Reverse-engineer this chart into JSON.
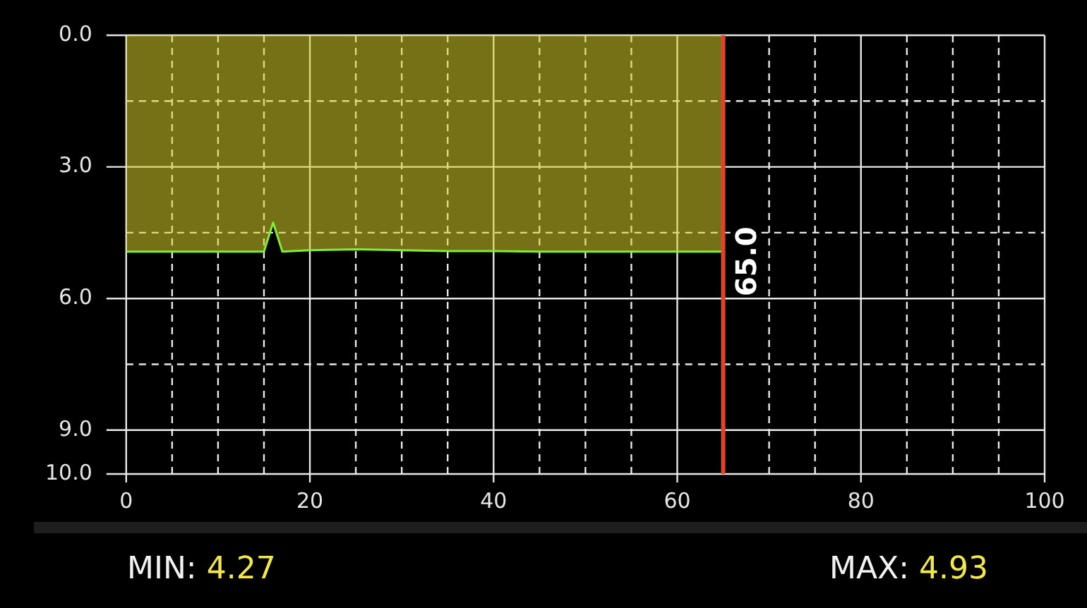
{
  "chart_data": {
    "type": "area",
    "x": [
      0,
      5,
      10,
      15,
      16,
      17,
      20,
      25,
      30,
      35,
      40,
      45,
      50,
      55,
      60,
      65
    ],
    "series": [
      {
        "color": "#7ef03a",
        "values": [
          4.93,
          4.93,
          4.93,
          4.93,
          4.27,
          4.93,
          4.9,
          4.88,
          4.9,
          4.92,
          4.92,
          4.93,
          4.93,
          4.93,
          4.93,
          4.93
        ]
      }
    ],
    "xlim": [
      0,
      100
    ],
    "xticks": [
      0,
      {
        "value": 5,
        "label": null
      },
      {
        "value": 10,
        "label": null
      },
      {
        "value": 15,
        "label": null
      },
      20,
      {
        "value": 25,
        "label": null
      },
      {
        "value": 30,
        "label": null
      },
      {
        "value": 35,
        "label": null
      },
      40,
      {
        "value": 45,
        "label": null
      },
      {
        "value": 50,
        "label": null
      },
      {
        "value": 55,
        "label": null
      },
      60,
      {
        "value": 65,
        "label": null
      },
      {
        "value": 70,
        "label": null
      },
      {
        "value": 75,
        "label": null
      },
      80,
      {
        "value": 85,
        "label": null
      },
      {
        "value": 90,
        "label": null
      },
      {
        "value": 95,
        "label": null
      },
      100
    ],
    "ylim": [
      10,
      0
    ],
    "yticks": [
      {
        "value": 0,
        "label": "0.0"
      },
      {
        "value": 1.5,
        "label": null
      },
      {
        "value": 3,
        "label": "3.0"
      },
      {
        "value": 4.5,
        "label": null
      },
      {
        "value": 6,
        "label": "6.0"
      },
      {
        "value": 7.5,
        "label": null
      },
      {
        "value": 9,
        "label": "9.0"
      },
      {
        "value": 10,
        "label": "10.0"
      }
    ],
    "grid": true,
    "legend": false,
    "marker": "none",
    "ref_lines": [
      {
        "axis": "x",
        "value": 65,
        "label": "65.0",
        "color": "#e0432c"
      }
    ],
    "annotations": [
      "MIN: 4.27",
      "MAX: 4.93"
    ]
  }
}
